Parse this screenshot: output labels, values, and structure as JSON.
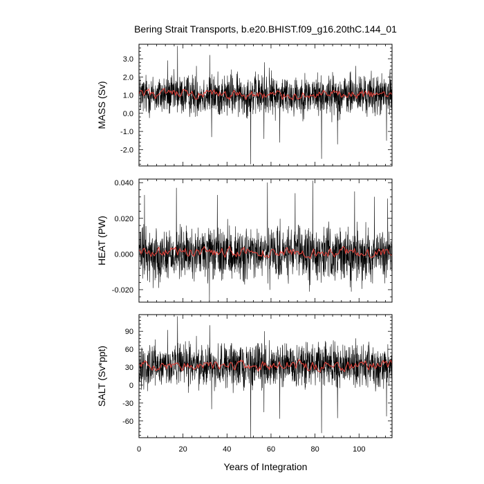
{
  "title": "Bering Strait Transports, b.e20.BHIST.f09_g16.20thC.144_01",
  "colors": {
    "raw": "#000000",
    "smooth": "#e0413a",
    "frame": "#000000"
  },
  "chart_data": [
    {
      "type": "line",
      "ylabel": "MASS (Sv)",
      "ylim": [
        -2.9,
        3.8
      ],
      "yticks": [
        -2.0,
        -1.0,
        0.0,
        1.0,
        2.0,
        3.0
      ],
      "yticklabels": [
        "-2.0",
        "-1.0",
        "0.0",
        "1.0",
        "2.0",
        "3.0"
      ],
      "xlim": [
        0,
        115
      ],
      "xticks": [
        0,
        20,
        40,
        60,
        80,
        100
      ],
      "xticklabels": [
        "0",
        "20",
        "40",
        "60",
        "80",
        "100"
      ],
      "xlabel": "",
      "series": [
        {
          "role": "monthly",
          "mean": 1.0,
          "spread": 0.85,
          "spikes_up": [
            [
              17.5,
              3.7
            ],
            [
              32.2,
              3.2
            ],
            [
              13.0,
              2.9
            ],
            [
              26.1,
              2.6
            ],
            [
              57.0,
              2.8
            ],
            [
              98.5,
              2.6
            ],
            [
              59.2,
              2.5
            ],
            [
              42.0,
              2.4
            ]
          ],
          "spikes_down": [
            [
              50.8,
              -2.8
            ],
            [
              83.0,
              -2.5
            ],
            [
              64.0,
              -1.6
            ],
            [
              90.2,
              -1.7
            ],
            [
              56.8,
              -1.4
            ],
            [
              112.5,
              -1.5
            ],
            [
              33.0,
              -1.3
            ]
          ]
        },
        {
          "role": "smoothed",
          "mean": 1.0,
          "spread": 0.2
        }
      ]
    },
    {
      "type": "line",
      "ylabel": "HEAT (PW)",
      "ylim": [
        -0.027,
        0.042
      ],
      "yticks": [
        -0.02,
        0.0,
        0.02,
        0.04
      ],
      "yticklabels": [
        "-0.020",
        "0.000",
        "0.020",
        "0.040"
      ],
      "xlim": [
        0,
        115
      ],
      "xticks": [
        0,
        20,
        40,
        60,
        80,
        100
      ],
      "xticklabels": [
        "0",
        "20",
        "40",
        "60",
        "80",
        "100"
      ],
      "xlabel": "",
      "series": [
        {
          "role": "monthly",
          "mean": 0.0,
          "spread": 0.011,
          "spikes_up": [
            [
              79.0,
              0.041
            ],
            [
              58.4,
              0.04
            ],
            [
              17.0,
              0.037
            ],
            [
              2.5,
              0.033
            ],
            [
              35.6,
              0.033
            ],
            [
              71.0,
              0.034
            ],
            [
              98.0,
              0.035
            ],
            [
              107.0,
              0.032
            ],
            [
              113.0,
              0.031
            ]
          ],
          "spikes_down": [
            [
              32.0,
              -0.026
            ],
            [
              77.5,
              -0.021
            ],
            [
              96.5,
              -0.021
            ],
            [
              59.5,
              -0.02
            ],
            [
              6.5,
              -0.019
            ],
            [
              48.0,
              -0.017
            ]
          ]
        },
        {
          "role": "smoothed",
          "mean": 0.001,
          "spread": 0.002
        }
      ]
    },
    {
      "type": "line",
      "ylabel": "SALT (Sv*ppt)",
      "ylim": [
        -88,
        118
      ],
      "yticks": [
        -60,
        -30,
        0,
        30,
        60,
        90
      ],
      "yticklabels": [
        "-60",
        "-30",
        "0",
        "30",
        "60",
        "90"
      ],
      "xlim": [
        0,
        115
      ],
      "xticks": [
        0,
        20,
        40,
        60,
        80,
        100
      ],
      "xticklabels": [
        "0",
        "20",
        "40",
        "60",
        "80",
        "100"
      ],
      "xlabel": "Years of Integration",
      "series": [
        {
          "role": "monthly",
          "mean": 33,
          "spread": 26,
          "spikes_up": [
            [
              17.5,
              115
            ],
            [
              32.2,
              100
            ],
            [
              13.0,
              92
            ],
            [
              57.0,
              90
            ],
            [
              26.1,
              82
            ],
            [
              98.5,
              78
            ],
            [
              59.2,
              75
            ],
            [
              42.0,
              70
            ]
          ],
          "spikes_down": [
            [
              50.8,
              -88
            ],
            [
              83.0,
              -80
            ],
            [
              64.0,
              -56
            ],
            [
              90.2,
              -55
            ],
            [
              112.5,
              -52
            ],
            [
              56.8,
              -45
            ],
            [
              33.0,
              -40
            ]
          ]
        },
        {
          "role": "smoothed",
          "mean": 33,
          "spread": 6
        }
      ]
    }
  ]
}
